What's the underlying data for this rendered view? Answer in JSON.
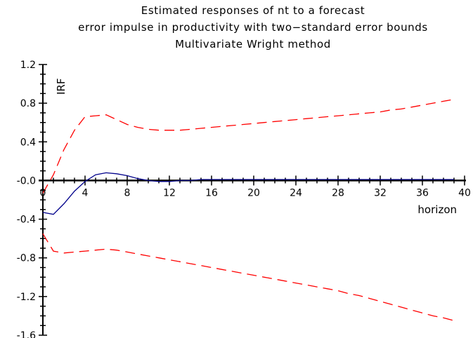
{
  "chart_data": {
    "type": "line",
    "title_lines": [
      "Estimated responses of nt  to a forecast",
      "error impulse in productivity with two−standard error bounds",
      "Multivariate Wright method"
    ],
    "xlabel": "horizon",
    "ylabel": "IRF",
    "xlim": [
      0,
      40
    ],
    "ylim": [
      -1.6,
      1.2
    ],
    "xticks": [
      0,
      4,
      8,
      12,
      16,
      20,
      24,
      28,
      32,
      36,
      40
    ],
    "xtick_labels": [
      "0",
      "4",
      "8",
      "12",
      "16",
      "20",
      "24",
      "28",
      "32",
      "36",
      "40"
    ],
    "yticks": [
      1.2,
      0.8,
      0.4,
      0.0,
      -0.4,
      -0.8,
      -1.2,
      -1.6
    ],
    "ytick_labels": [
      "1.2",
      "0.8",
      "0.4",
      "-0.0",
      "-0.4",
      "-0.8",
      "-1.2",
      "-1.6"
    ],
    "grid": false,
    "x": [
      0,
      1,
      2,
      3,
      4,
      5,
      6,
      7,
      8,
      9,
      10,
      11,
      12,
      13,
      14,
      15,
      16,
      17,
      18,
      19,
      20,
      21,
      22,
      23,
      24,
      25,
      26,
      27,
      28,
      29,
      30,
      31,
      32,
      33,
      34,
      35,
      36,
      37,
      38,
      39
    ],
    "series": [
      {
        "role": "estimate",
        "color": "#00008b",
        "style": "solid",
        "values": [
          -0.33,
          -0.35,
          -0.24,
          -0.11,
          -0.01,
          0.06,
          0.08,
          0.07,
          0.05,
          0.02,
          0.0,
          -0.01,
          -0.01,
          0.0,
          0.0,
          0.01,
          0.01,
          0.01,
          0.01,
          0.01,
          0.01,
          0.01,
          0.01,
          0.01,
          0.01,
          0.01,
          0.01,
          0.01,
          0.01,
          0.01,
          0.01,
          0.01,
          0.01,
          0.01,
          0.01,
          0.01,
          0.01,
          0.01,
          0.01,
          0.01
        ]
      },
      {
        "role": "upper-bound",
        "color": "#ff0000",
        "style": "dashed",
        "values": [
          -0.13,
          0.06,
          0.32,
          0.52,
          0.66,
          0.67,
          0.68,
          0.63,
          0.58,
          0.55,
          0.53,
          0.52,
          0.52,
          0.52,
          0.53,
          0.54,
          0.55,
          0.56,
          0.57,
          0.58,
          0.59,
          0.6,
          0.61,
          0.62,
          0.63,
          0.64,
          0.65,
          0.66,
          0.67,
          0.68,
          0.69,
          0.7,
          0.71,
          0.73,
          0.74,
          0.76,
          0.78,
          0.8,
          0.82,
          0.84
        ]
      },
      {
        "role": "lower-bound",
        "color": "#ff0000",
        "style": "dashed",
        "values": [
          -0.55,
          -0.73,
          -0.75,
          -0.74,
          -0.73,
          -0.72,
          -0.71,
          -0.72,
          -0.74,
          -0.76,
          -0.78,
          -0.8,
          -0.82,
          -0.84,
          -0.86,
          -0.88,
          -0.9,
          -0.92,
          -0.94,
          -0.96,
          -0.98,
          -1.0,
          -1.02,
          -1.04,
          -1.06,
          -1.08,
          -1.1,
          -1.12,
          -1.14,
          -1.17,
          -1.19,
          -1.22,
          -1.25,
          -1.28,
          -1.31,
          -1.34,
          -1.37,
          -1.4,
          -1.42,
          -1.45
        ]
      }
    ]
  }
}
